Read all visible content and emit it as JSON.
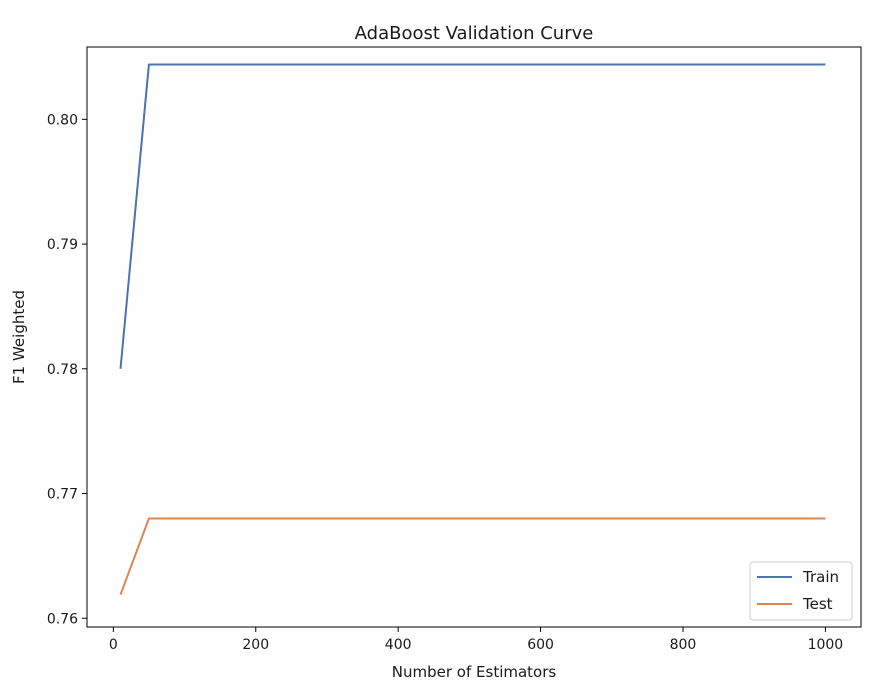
{
  "chart_data": {
    "type": "line",
    "title": "AdaBoost Validation Curve",
    "xlabel": "Number of Estimators",
    "ylabel": "F1 Weighted",
    "xlim": [
      -37,
      1050
    ],
    "ylim": [
      0.7593,
      0.8058
    ],
    "xticks": [
      0,
      200,
      400,
      600,
      800,
      1000
    ],
    "yticks": [
      0.76,
      0.77,
      0.78,
      0.79,
      0.8
    ],
    "ytick_labels": [
      "0.76",
      "0.77",
      "0.78",
      "0.79",
      "0.80"
    ],
    "grid": false,
    "legend": "lower-right",
    "series": [
      {
        "name": "Train",
        "color": "#4c72b0",
        "x": [
          10,
          50,
          100,
          500,
          1000
        ],
        "y": [
          0.78,
          0.8044,
          0.8044,
          0.8044,
          0.8044
        ]
      },
      {
        "name": "Test",
        "color": "#dd8452",
        "x": [
          10,
          50,
          100,
          500,
          1000
        ],
        "y": [
          0.7619,
          0.768,
          0.768,
          0.768,
          0.768
        ]
      }
    ]
  }
}
